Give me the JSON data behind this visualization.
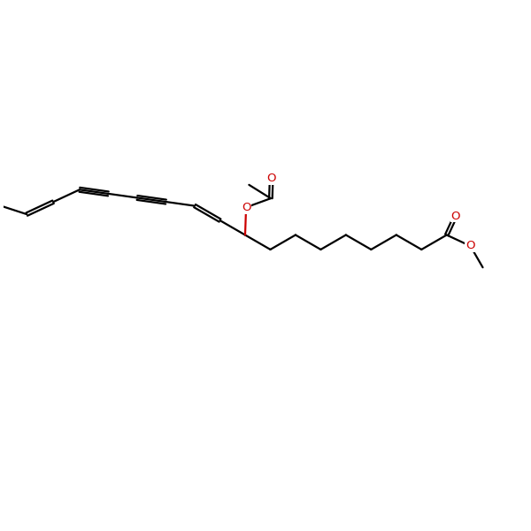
{
  "bg_color": "#ffffff",
  "bond_color": "#000000",
  "o_color": "#cc0000",
  "lw": 1.6,
  "dbl_off": 0.055,
  "trip_off": 0.075,
  "bl": 1.0,
  "xlim": [
    -0.5,
    17.5
  ],
  "ylim": [
    -1.0,
    8.5
  ],
  "figsize": [
    6.0,
    6.0
  ],
  "dpi": 100,
  "label_fs": 9.5
}
